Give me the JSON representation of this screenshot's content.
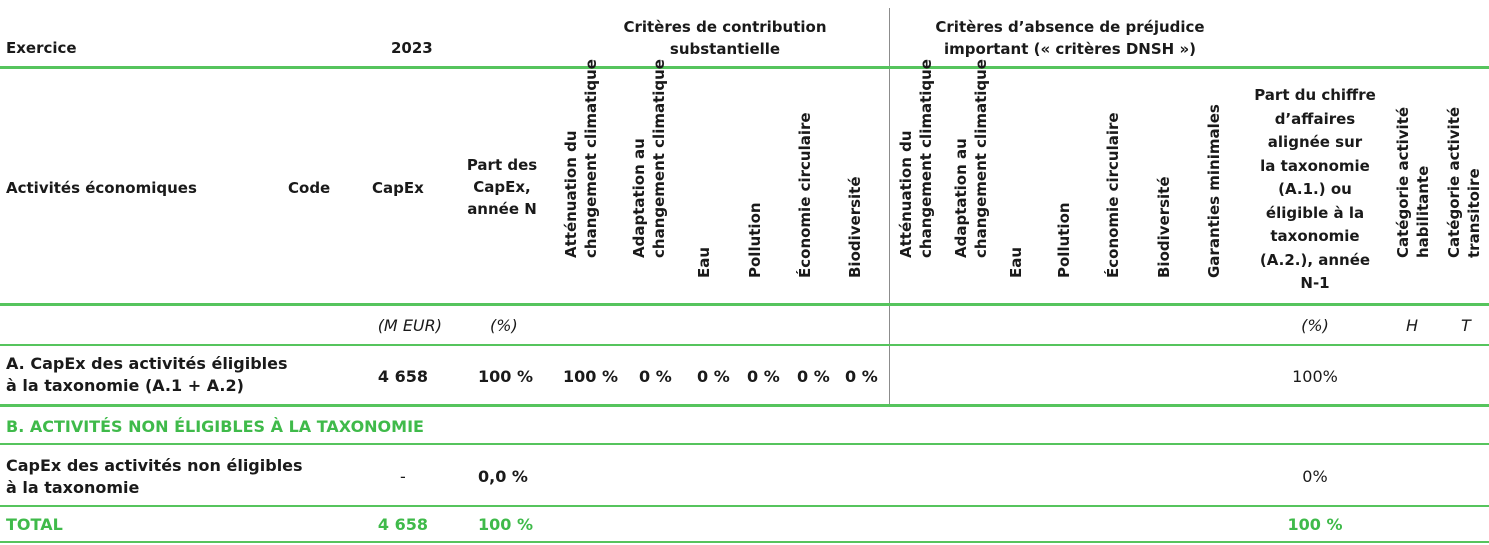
{
  "header": {
    "exercice_label": "Exercice",
    "year": "2023",
    "substantial_group": "Critères de contribution\nsubstantielle",
    "dnsh_group": "Critères d’absence de préjudice\nimportant (« critères DNSH »)"
  },
  "columns": {
    "activities": "Activités économiques",
    "code": "Code",
    "capex": "CapEx",
    "share_capex": "Part des\nCapEx,\nannée N",
    "sc_attenuation": "Atténuation du\nchangement climatique",
    "sc_adaptation": "Adaptation au\nchangement climatique",
    "sc_eau": "Eau",
    "sc_pollution": "Pollution",
    "sc_economie": "Économie circulaire",
    "sc_biodiversite": "Biodiversité",
    "dnsh_attenuation": "Atténuation du\nchangement climatique",
    "dnsh_adaptation": "Adaptation au\nchangement climatique",
    "dnsh_eau": "Eau",
    "dnsh_pollution": "Pollution",
    "dnsh_economie": "Économie circulaire",
    "dnsh_biodiversite": "Biodiversité",
    "garanties": "Garanties minimales",
    "part_ca": "Part du chiffre\nd’affaires\nalignée sur\nla taxonomie\n(A.1.) ou\néligible à la\ntaxonomie\n(A.2.), année\nN-1",
    "cat_habilitante": "Catégorie activité\nhabilitante",
    "cat_transitoire": "Catégorie activité\ntransitoire"
  },
  "units": {
    "capex": "(M EUR)",
    "share": "(%)",
    "part_ca": "(%)",
    "h": "H",
    "t": "T"
  },
  "row_a": {
    "label": "A. CapEx des activités éligibles\nà la taxonomie (A.1 + A.2)",
    "capex": "4 658",
    "share": "100 %",
    "sc_attenuation": "100 %",
    "sc_adaptation": "0 %",
    "sc_eau": "0 %",
    "sc_pollution": "0 %",
    "sc_economie": "0 %",
    "sc_biodiversite": "0 %",
    "part_ca": "100%"
  },
  "section_b": {
    "label": "B. ACTIVITÉS NON ÉLIGIBLES À LA TAXONOMIE"
  },
  "row_b": {
    "label": "CapEx des activités non éligibles\nà la taxonomie",
    "capex": "-",
    "share": "0,0 %",
    "part_ca": "0%"
  },
  "total": {
    "label": "TOTAL",
    "capex": "4 658",
    "share": "100 %",
    "part_ca": "100 %"
  },
  "colors": {
    "accent_green": "#3fba4a",
    "rule_green": "#56c45d"
  }
}
